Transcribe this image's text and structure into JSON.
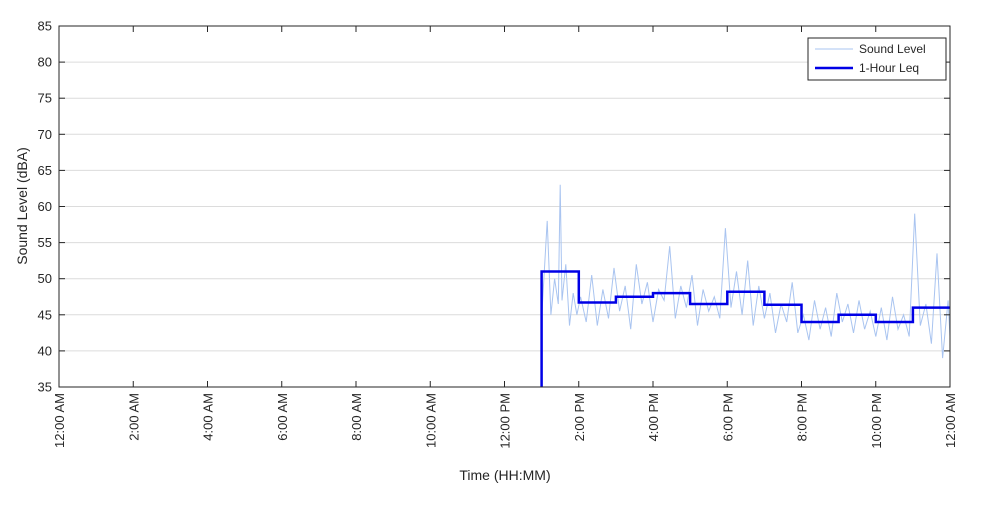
{
  "chart_data": {
    "type": "line",
    "title": "",
    "xlabel": "Time (HH:MM)",
    "ylabel": "Sound Level (dBA)",
    "ylim": [
      35,
      85
    ],
    "yticks": [
      35,
      40,
      45,
      50,
      55,
      60,
      65,
      70,
      75,
      80,
      85
    ],
    "xlim_hours": [
      0,
      24
    ],
    "xticks": [
      {
        "hour": 0,
        "label": "12:00 AM"
      },
      {
        "hour": 2,
        "label": "2:00 AM"
      },
      {
        "hour": 4,
        "label": "4:00 AM"
      },
      {
        "hour": 6,
        "label": "6:00 AM"
      },
      {
        "hour": 8,
        "label": "8:00 AM"
      },
      {
        "hour": 10,
        "label": "10:00 AM"
      },
      {
        "hour": 12,
        "label": "12:00 PM"
      },
      {
        "hour": 14,
        "label": "2:00 PM"
      },
      {
        "hour": 16,
        "label": "4:00 PM"
      },
      {
        "hour": 18,
        "label": "6:00 PM"
      },
      {
        "hour": 20,
        "label": "8:00 PM"
      },
      {
        "hour": 22,
        "label": "10:00 PM"
      },
      {
        "hour": 24,
        "label": "12:00 AM"
      }
    ],
    "grid": "horizontal",
    "legend_position": "top-right",
    "series": [
      {
        "name": "Sound Level",
        "color": "#a9c4f0",
        "style": "thin-line",
        "x_hours": [
          13.0,
          13.15,
          13.25,
          13.35,
          13.45,
          13.5,
          13.55,
          13.65,
          13.75,
          13.85,
          13.95,
          14.05,
          14.2,
          14.35,
          14.5,
          14.65,
          14.8,
          14.95,
          15.1,
          15.25,
          15.4,
          15.55,
          15.7,
          15.85,
          16.0,
          16.15,
          16.3,
          16.45,
          16.6,
          16.75,
          16.9,
          17.05,
          17.2,
          17.35,
          17.5,
          17.65,
          17.8,
          17.95,
          18.1,
          18.25,
          18.4,
          18.55,
          18.7,
          18.85,
          19.0,
          19.15,
          19.3,
          19.45,
          19.6,
          19.75,
          19.9,
          20.05,
          20.2,
          20.35,
          20.5,
          20.65,
          20.8,
          20.95,
          21.1,
          21.25,
          21.4,
          21.55,
          21.7,
          21.85,
          22.0,
          22.15,
          22.3,
          22.45,
          22.6,
          22.75,
          22.9,
          23.05,
          23.2,
          23.35,
          23.5,
          23.65,
          23.8,
          23.95,
          24.0
        ],
        "values": [
          44.5,
          58.0,
          45.0,
          50.0,
          46.5,
          63.0,
          47.0,
          52.0,
          43.5,
          48.0,
          45.0,
          47.5,
          44.0,
          50.5,
          43.5,
          48.5,
          44.5,
          51.5,
          45.5,
          49.0,
          43.0,
          52.0,
          46.5,
          49.5,
          44.0,
          48.5,
          47.0,
          54.5,
          44.5,
          49.0,
          46.0,
          50.5,
          43.5,
          48.5,
          45.5,
          47.5,
          44.5,
          57.0,
          46.0,
          51.0,
          45.0,
          52.5,
          43.5,
          49.0,
          44.5,
          48.0,
          42.5,
          46.5,
          44.0,
          49.5,
          42.5,
          45.0,
          41.5,
          47.0,
          43.0,
          46.0,
          42.0,
          48.0,
          44.0,
          46.5,
          42.5,
          47.0,
          43.0,
          45.5,
          42.0,
          46.0,
          41.5,
          47.5,
          43.0,
          45.0,
          42.0,
          59.0,
          43.5,
          46.5,
          41.0,
          53.5,
          39.0,
          47.0,
          42.0
        ]
      },
      {
        "name": "1-Hour Leq",
        "color": "#0000e6",
        "style": "step-line",
        "x_hours": [
          13,
          14,
          15,
          16,
          17,
          18,
          19,
          20,
          21,
          22,
          23,
          24
        ],
        "values": [
          51.0,
          46.7,
          47.5,
          48.0,
          46.5,
          48.2,
          46.4,
          44.0,
          45.0,
          44.0,
          46.0,
          46.0
        ]
      }
    ]
  }
}
